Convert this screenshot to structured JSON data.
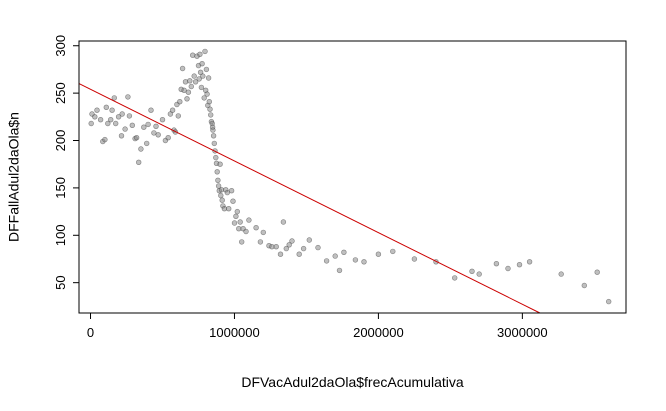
{
  "chart_data": {
    "type": "scatter",
    "title": "",
    "xlabel": "DFVacAdul2daOla$frecAcumulativa",
    "ylabel": "DFFallAdul2daOla$n",
    "xlim": [
      -80000,
      3720000
    ],
    "ylim": [
      18,
      305
    ],
    "x_ticks": [
      0,
      1000000,
      2000000,
      3000000
    ],
    "x_tick_labels": [
      "0",
      "1000000",
      "2000000",
      "3000000"
    ],
    "y_ticks": [
      50,
      100,
      150,
      200,
      250,
      300
    ],
    "y_tick_labels": [
      "50",
      "100",
      "150",
      "200",
      "250",
      "300"
    ],
    "grid": false,
    "point_color": "#80808080",
    "point_stroke": "#555555",
    "regression_line": {
      "color": "#cc0000",
      "intercept": 254,
      "slope": -7.56e-05
    },
    "points": [
      [
        5000,
        218
      ],
      [
        10000,
        228
      ],
      [
        30000,
        225
      ],
      [
        45000,
        232
      ],
      [
        70000,
        222
      ],
      [
        85000,
        199
      ],
      [
        100000,
        201
      ],
      [
        110000,
        235
      ],
      [
        120000,
        218
      ],
      [
        140000,
        222
      ],
      [
        150000,
        232
      ],
      [
        165000,
        245
      ],
      [
        175000,
        218
      ],
      [
        195000,
        225
      ],
      [
        215000,
        205
      ],
      [
        220000,
        228
      ],
      [
        240000,
        212
      ],
      [
        260000,
        246
      ],
      [
        270000,
        226
      ],
      [
        290000,
        216
      ],
      [
        310000,
        202
      ],
      [
        320000,
        203
      ],
      [
        335000,
        177
      ],
      [
        350000,
        191
      ],
      [
        370000,
        214
      ],
      [
        390000,
        197
      ],
      [
        400000,
        217
      ],
      [
        420000,
        232
      ],
      [
        440000,
        208
      ],
      [
        455000,
        215
      ],
      [
        470000,
        206
      ],
      [
        500000,
        222
      ],
      [
        520000,
        200
      ],
      [
        540000,
        203
      ],
      [
        555000,
        228
      ],
      [
        570000,
        232
      ],
      [
        580000,
        211
      ],
      [
        590000,
        209
      ],
      [
        600000,
        238
      ],
      [
        610000,
        226
      ],
      [
        620000,
        241
      ],
      [
        630000,
        254
      ],
      [
        640000,
        276
      ],
      [
        650000,
        253
      ],
      [
        660000,
        262
      ],
      [
        670000,
        244
      ],
      [
        680000,
        251
      ],
      [
        690000,
        263
      ],
      [
        700000,
        257
      ],
      [
        710000,
        290
      ],
      [
        720000,
        268
      ],
      [
        730000,
        262
      ],
      [
        740000,
        289
      ],
      [
        750000,
        279
      ],
      [
        755000,
        265
      ],
      [
        760000,
        291
      ],
      [
        765000,
        272
      ],
      [
        770000,
        256
      ],
      [
        775000,
        281
      ],
      [
        780000,
        268
      ],
      [
        790000,
        245
      ],
      [
        795000,
        294
      ],
      [
        800000,
        253
      ],
      [
        805000,
        275
      ],
      [
        810000,
        249
      ],
      [
        815000,
        237
      ],
      [
        820000,
        266
      ],
      [
        825000,
        241
      ],
      [
        830000,
        233
      ],
      [
        835000,
        227
      ],
      [
        840000,
        220
      ],
      [
        845000,
        218
      ],
      [
        848000,
        214
      ],
      [
        850000,
        211
      ],
      [
        855000,
        205
      ],
      [
        860000,
        197
      ],
      [
        865000,
        189
      ],
      [
        870000,
        182
      ],
      [
        875000,
        176
      ],
      [
        880000,
        167
      ],
      [
        885000,
        158
      ],
      [
        890000,
        152
      ],
      [
        895000,
        147
      ],
      [
        900000,
        175
      ],
      [
        905000,
        142
      ],
      [
        910000,
        148
      ],
      [
        915000,
        137
      ],
      [
        920000,
        131
      ],
      [
        930000,
        128
      ],
      [
        940000,
        148
      ],
      [
        950000,
        145
      ],
      [
        960000,
        128
      ],
      [
        980000,
        147
      ],
      [
        990000,
        136
      ],
      [
        1000000,
        113
      ],
      [
        1010000,
        120
      ],
      [
        1020000,
        125
      ],
      [
        1030000,
        107
      ],
      [
        1040000,
        114
      ],
      [
        1050000,
        93
      ],
      [
        1060000,
        107
      ],
      [
        1080000,
        104
      ],
      [
        1100000,
        116
      ],
      [
        1150000,
        108
      ],
      [
        1180000,
        93
      ],
      [
        1200000,
        103
      ],
      [
        1240000,
        89
      ],
      [
        1260000,
        88
      ],
      [
        1290000,
        88
      ],
      [
        1320000,
        80
      ],
      [
        1340000,
        114
      ],
      [
        1360000,
        86
      ],
      [
        1380000,
        90
      ],
      [
        1400000,
        94
      ],
      [
        1450000,
        80
      ],
      [
        1480000,
        86
      ],
      [
        1520000,
        95
      ],
      [
        1580000,
        87
      ],
      [
        1640000,
        73
      ],
      [
        1700000,
        78
      ],
      [
        1730000,
        63
      ],
      [
        1760000,
        82
      ],
      [
        1840000,
        74
      ],
      [
        1900000,
        72
      ],
      [
        2000000,
        80
      ],
      [
        2100000,
        83
      ],
      [
        2250000,
        75
      ],
      [
        2400000,
        72
      ],
      [
        2530000,
        55
      ],
      [
        2650000,
        62
      ],
      [
        2700000,
        59
      ],
      [
        2820000,
        70
      ],
      [
        2900000,
        65
      ],
      [
        2980000,
        69
      ],
      [
        3050000,
        72
      ],
      [
        3270000,
        59
      ],
      [
        3430000,
        47
      ],
      [
        3520000,
        61
      ],
      [
        3600000,
        30
      ]
    ]
  }
}
